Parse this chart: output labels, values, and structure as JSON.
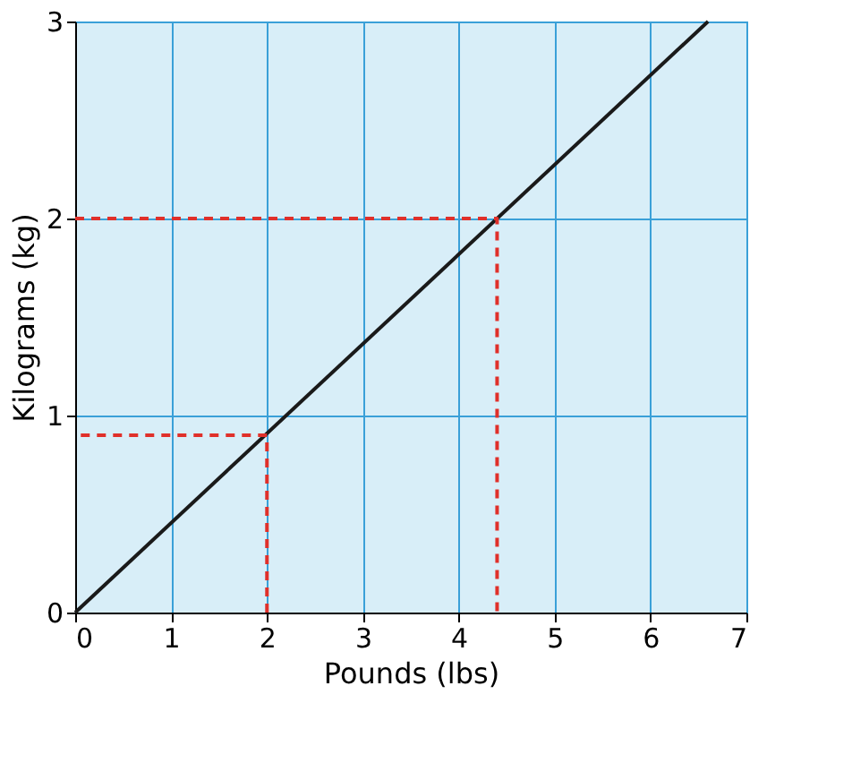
{
  "chart_data": {
    "type": "line",
    "xlabel": "Pounds (lbs)",
    "ylabel": "Kilograms (kg)",
    "xlim": [
      0,
      7
    ],
    "ylim": [
      0,
      3
    ],
    "xticks": [
      0,
      1,
      2,
      3,
      4,
      5,
      6,
      7
    ],
    "yticks": [
      0,
      1,
      2,
      3
    ],
    "grid": true,
    "series": [
      {
        "color": "#1a1a1a",
        "x": [
          0,
          6.6
        ],
        "values": [
          0,
          3
        ],
        "line_style": "solid"
      },
      {
        "color": "#e0302a",
        "x": [
          2,
          2,
          0
        ],
        "values": [
          0,
          0.9,
          0.9
        ],
        "line_style": "dashed"
      },
      {
        "color": "#e0302a",
        "x": [
          0,
          4.4,
          4.4
        ],
        "values": [
          2,
          2,
          0
        ],
        "line_style": "dashed"
      }
    ]
  }
}
